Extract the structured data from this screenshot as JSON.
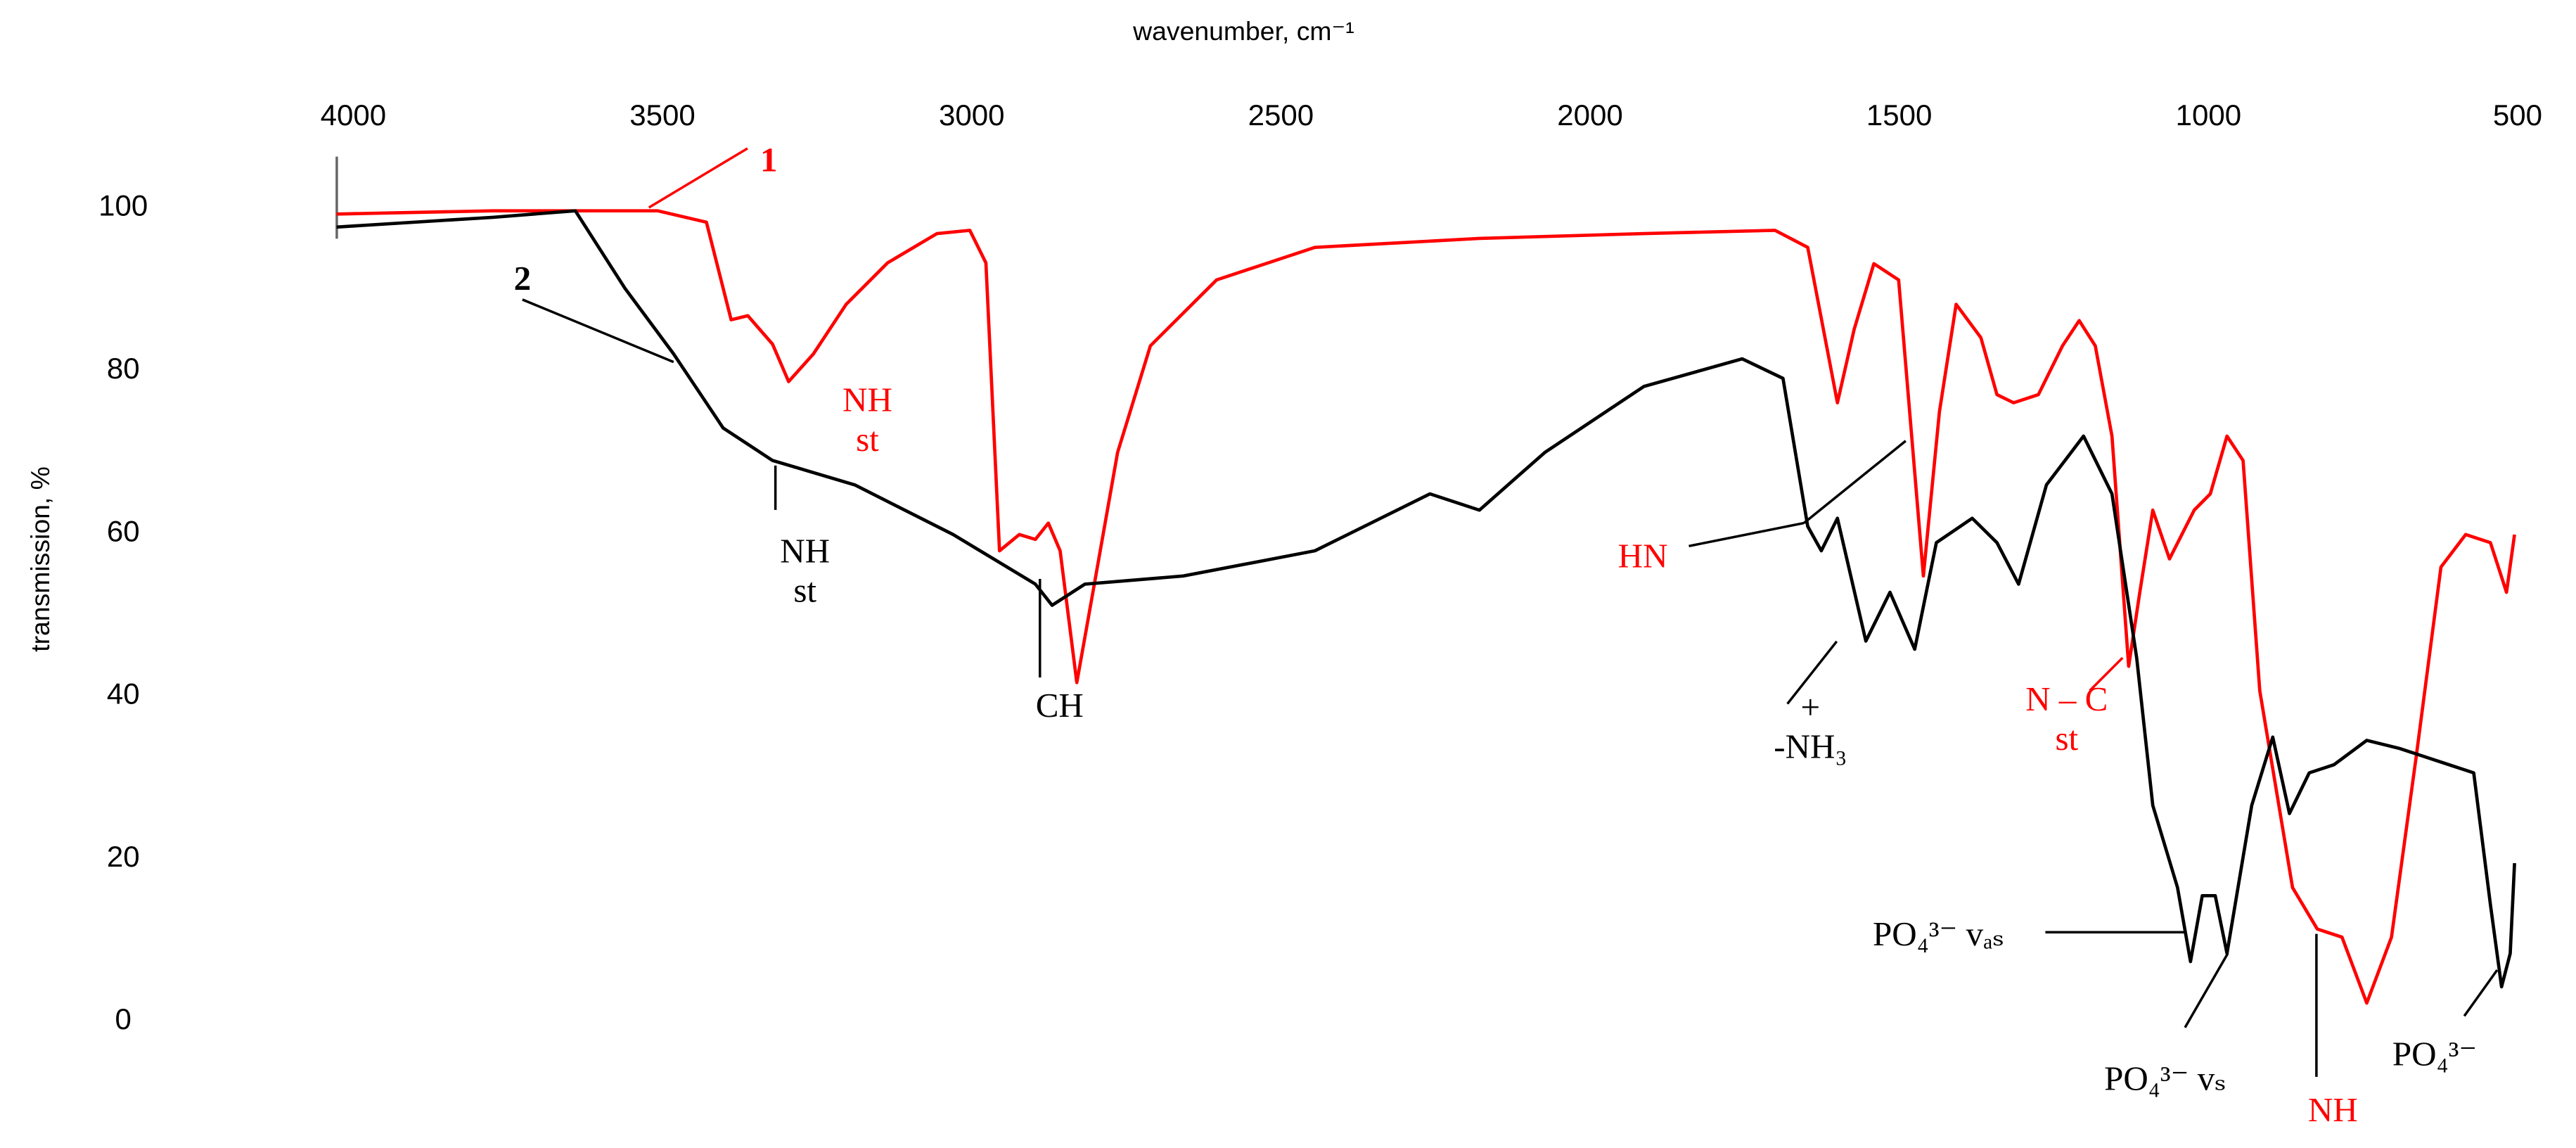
{
  "chart_data": {
    "type": "line",
    "xlabel": "wavenumber, cm⁻¹",
    "ylabel": "transmission, %",
    "xlim": [
      4040,
      480
    ],
    "ylim": [
      0,
      100
    ],
    "xticks": [
      4000,
      3500,
      3000,
      2500,
      2000,
      1500,
      1000,
      500
    ],
    "yticks": [
      0,
      20,
      40,
      60,
      80,
      100
    ],
    "xaxis_position": "top",
    "grid": false,
    "series": [
      {
        "name": "1",
        "color": "#ff0000",
        "x": [
          4027,
          3774,
          3508,
          3429,
          3389,
          3362,
          3322,
          3296,
          3256,
          3203,
          3136,
          3056,
          3003,
          2977,
          2955,
          2923,
          2897,
          2876,
          2857,
          2830,
          2804,
          2764,
          2711,
          2604,
          2445,
          2179,
          1913,
          1701,
          1648,
          1600,
          1573,
          1541,
          1501,
          1461,
          1435,
          1408,
          1368,
          1342,
          1315,
          1275,
          1236,
          1209,
          1183,
          1156,
          1129,
          1111,
          1090,
          1063,
          1023,
          997,
          970,
          944,
          917,
          864,
          824,
          784,
          744,
          704,
          664,
          624,
          584,
          544,
          518,
          505
        ],
        "values": [
          99,
          99.4,
          99.4,
          98,
          86,
          86.5,
          83,
          78.4,
          81.8,
          87.9,
          93,
          96.6,
          97,
          93,
          57.6,
          59.6,
          59,
          61,
          57.6,
          41.4,
          52.5,
          69.7,
          82.8,
          90.9,
          94.9,
          96,
          96.6,
          97,
          94.9,
          75.8,
          84.8,
          92.9,
          90.9,
          54.5,
          74.7,
          87.9,
          83.8,
          76.8,
          75.8,
          76.8,
          82.8,
          85.9,
          82.8,
          71.7,
          43.4,
          52.5,
          62.6,
          56.6,
          62.6,
          64.6,
          71.7,
          68.7,
          40.4,
          16.2,
          11.1,
          10.1,
          2,
          10.1,
          32.3,
          55.6,
          59.6,
          58.6,
          52.5,
          59.6
        ]
      },
      {
        "name": "2",
        "color": "#000000",
        "x": [
          4027,
          3774,
          3641,
          3561,
          3482,
          3402,
          3322,
          3189,
          3030,
          2897,
          2870,
          2817,
          2658,
          2445,
          2259,
          2179,
          2073,
          1913,
          1754,
          1688,
          1648,
          1626,
          1600,
          1554,
          1515,
          1475,
          1440,
          1382,
          1342,
          1307,
          1262,
          1202,
          1156,
          1116,
          1090,
          1050,
          1029,
          1010,
          989,
          970,
          930,
          896,
          869,
          837,
          797,
          744,
          691,
          611,
          571,
          544,
          526,
          512,
          505
        ],
        "values": [
          97.4,
          98.6,
          99.4,
          89.9,
          81.8,
          72.7,
          68.7,
          65.7,
          59.6,
          53.5,
          50.9,
          53.5,
          54.5,
          57.6,
          64.6,
          62.6,
          69.7,
          77.8,
          81.2,
          78.8,
          60.6,
          57.6,
          61.6,
          46.5,
          52.5,
          45.5,
          58.6,
          61.6,
          58.6,
          53.5,
          65.7,
          71.7,
          64.6,
          44.4,
          26.3,
          16.2,
          7.1,
          15.2,
          15.2,
          8.1,
          26.3,
          34.7,
          25.3,
          30.3,
          31.3,
          34.3,
          33.3,
          31.3,
          30.3,
          14.1,
          4,
          8.1,
          19.2
        ]
      }
    ],
    "annotations": [
      {
        "lines": [
          "1"
        ],
        "color": "#ff0000"
      },
      {
        "lines": [
          "2"
        ],
        "color": "#000000"
      },
      {
        "lines": [
          "NH",
          "st"
        ],
        "color": "#ff0000"
      },
      {
        "lines": [
          "NH",
          "st"
        ],
        "color": "#000000"
      },
      {
        "lines": [
          "CH"
        ],
        "color": "#000000"
      },
      {
        "lines": [
          "HN"
        ],
        "color": "#ff0000"
      },
      {
        "lines": [
          "+",
          "-NH₃"
        ],
        "color": "#000000"
      },
      {
        "lines": [
          "N – C",
          "st"
        ],
        "color": "#ff0000"
      },
      {
        "lines": [
          "PO₄³⁻ vₐₛ"
        ],
        "color": "#000000"
      },
      {
        "lines": [
          "PO₄³⁻ vₛ"
        ],
        "color": "#000000"
      },
      {
        "lines": [
          "NH"
        ],
        "color": "#ff0000"
      },
      {
        "lines": [
          "PO₄³⁻"
        ],
        "color": "#000000"
      }
    ]
  }
}
